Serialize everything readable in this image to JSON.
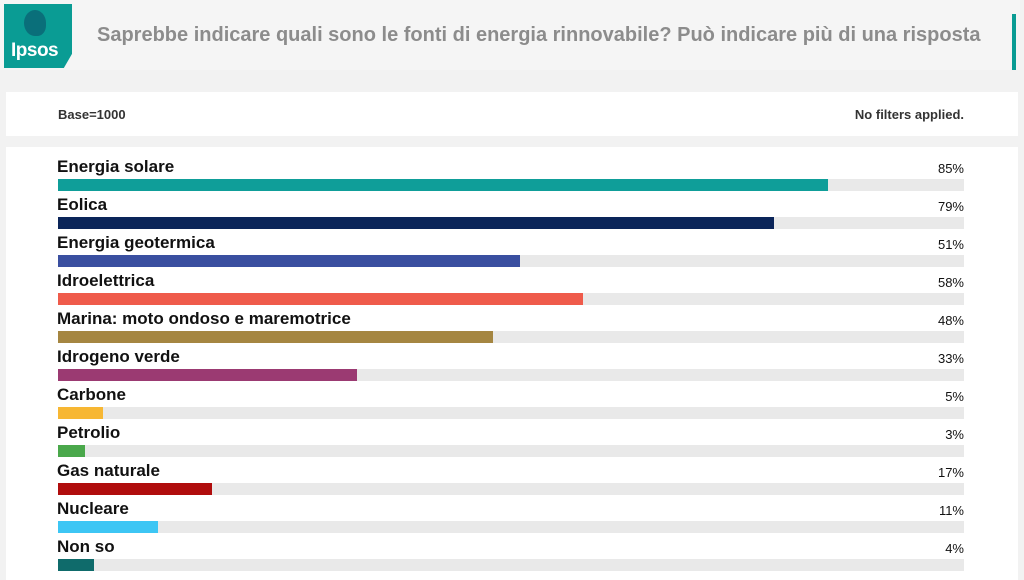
{
  "header": {
    "logo_text": "Ipsos",
    "title": "Saprebbe indicare quali sono le fonti di energia rinnovabile? Può indicare più di una risposta",
    "accent_color": "#0a9c94"
  },
  "info": {
    "base": "Base=1000",
    "filters": "No filters applied."
  },
  "chart_data": {
    "type": "bar",
    "orientation": "horizontal",
    "xlim": [
      0,
      100
    ],
    "categories": [
      "Energia solare",
      "Eolica",
      "Energia geotermica",
      "Idroelettrica",
      "Marina: moto ondoso e maremotrice",
      "Idrogeno verde",
      "Carbone",
      "Petrolio",
      "Gas naturale",
      "Nucleare",
      "Non so"
    ],
    "values": [
      85,
      79,
      51,
      58,
      48,
      33,
      5,
      3,
      17,
      11,
      4
    ],
    "value_labels": [
      "85%",
      "79%",
      "51%",
      "58%",
      "48%",
      "33%",
      "5%",
      "3%",
      "17%",
      "11%",
      "4%"
    ],
    "colors": [
      "#0f9e99",
      "#0b2559",
      "#3a4fa0",
      "#ef5b4b",
      "#a58641",
      "#9b3a72",
      "#f7b733",
      "#4aa84b",
      "#b00d0d",
      "#3dc6f4",
      "#0f6b6b"
    ]
  }
}
